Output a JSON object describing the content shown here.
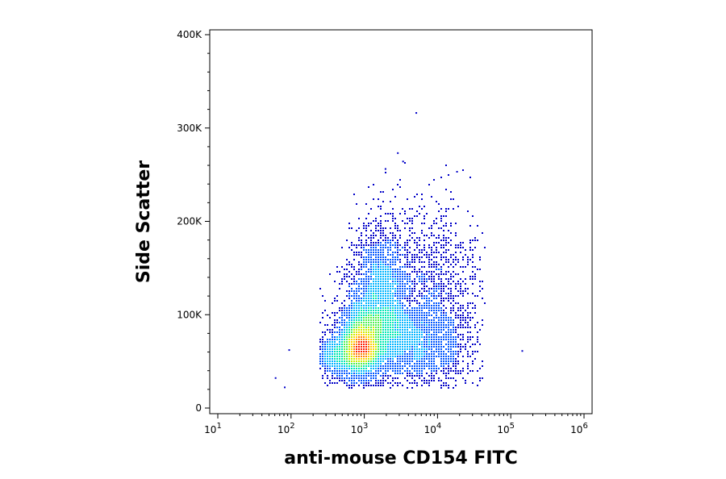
{
  "chart_data": {
    "type": "scatter",
    "subtype": "flow-cytometry-density-dot-plot",
    "xlabel": "anti-mouse CD154 FITC",
    "ylabel": "Side Scatter",
    "x_scale": "log",
    "xlim": [
      10,
      1000000
    ],
    "ylim": [
      0,
      400000
    ],
    "x_ticks": [
      {
        "value": 10,
        "base": "10",
        "exp": "1"
      },
      {
        "value": 100,
        "base": "10",
        "exp": "2"
      },
      {
        "value": 1000,
        "base": "10",
        "exp": "3"
      },
      {
        "value": 10000,
        "base": "10",
        "exp": "4"
      },
      {
        "value": 100000,
        "base": "10",
        "exp": "5"
      },
      {
        "value": 1000000,
        "base": "10",
        "exp": "6"
      }
    ],
    "y_ticks": [
      {
        "value": 0,
        "label": "0"
      },
      {
        "value": 100000,
        "label": "100K"
      },
      {
        "value": 200000,
        "label": "200K"
      },
      {
        "value": 300000,
        "label": "300K"
      },
      {
        "value": 400000,
        "label": "400K"
      }
    ],
    "grid": false,
    "legend": "none",
    "density_colormap": [
      "#0000c8",
      "#0055ff",
      "#00b4ff",
      "#00e6b4",
      "#50f050",
      "#c8f000",
      "#ffd200",
      "#ff8200",
      "#ff1e00"
    ],
    "populations": [
      {
        "x_log10_center": 2.95,
        "y_center": 65000,
        "x_log10_sd": 0.12,
        "y_sd": 14000,
        "share": 0.18
      },
      {
        "x_log10_center": 3.05,
        "y_center": 80000,
        "x_log10_sd": 0.22,
        "y_sd": 25000,
        "share": 0.22
      },
      {
        "x_log10_center": 3.25,
        "y_center": 125000,
        "x_log10_sd": 0.22,
        "y_sd": 38000,
        "share": 0.22
      },
      {
        "x_log10_center": 3.7,
        "y_center": 70000,
        "x_log10_sd": 0.35,
        "y_sd": 22000,
        "share": 0.18
      },
      {
        "x_log10_center": 4.0,
        "y_center": 120000,
        "x_log10_sd": 0.3,
        "y_sd": 50000,
        "share": 0.12
      },
      {
        "x_log10_center": 2.6,
        "y_center": 55000,
        "x_log10_sd": 0.18,
        "y_sd": 12000,
        "share": 0.08
      }
    ],
    "outliers": [
      {
        "x": 5000,
        "y": 317000
      },
      {
        "x": 2800,
        "y": 274000
      },
      {
        "x": 3300,
        "y": 265000
      },
      {
        "x": 1900,
        "y": 257000
      },
      {
        "x": 18000,
        "y": 254000
      },
      {
        "x": 140000,
        "y": 62000
      },
      {
        "x": 60,
        "y": 33000
      },
      {
        "x": 80,
        "y": 23000
      },
      {
        "x": 92,
        "y": 63000
      }
    ]
  }
}
